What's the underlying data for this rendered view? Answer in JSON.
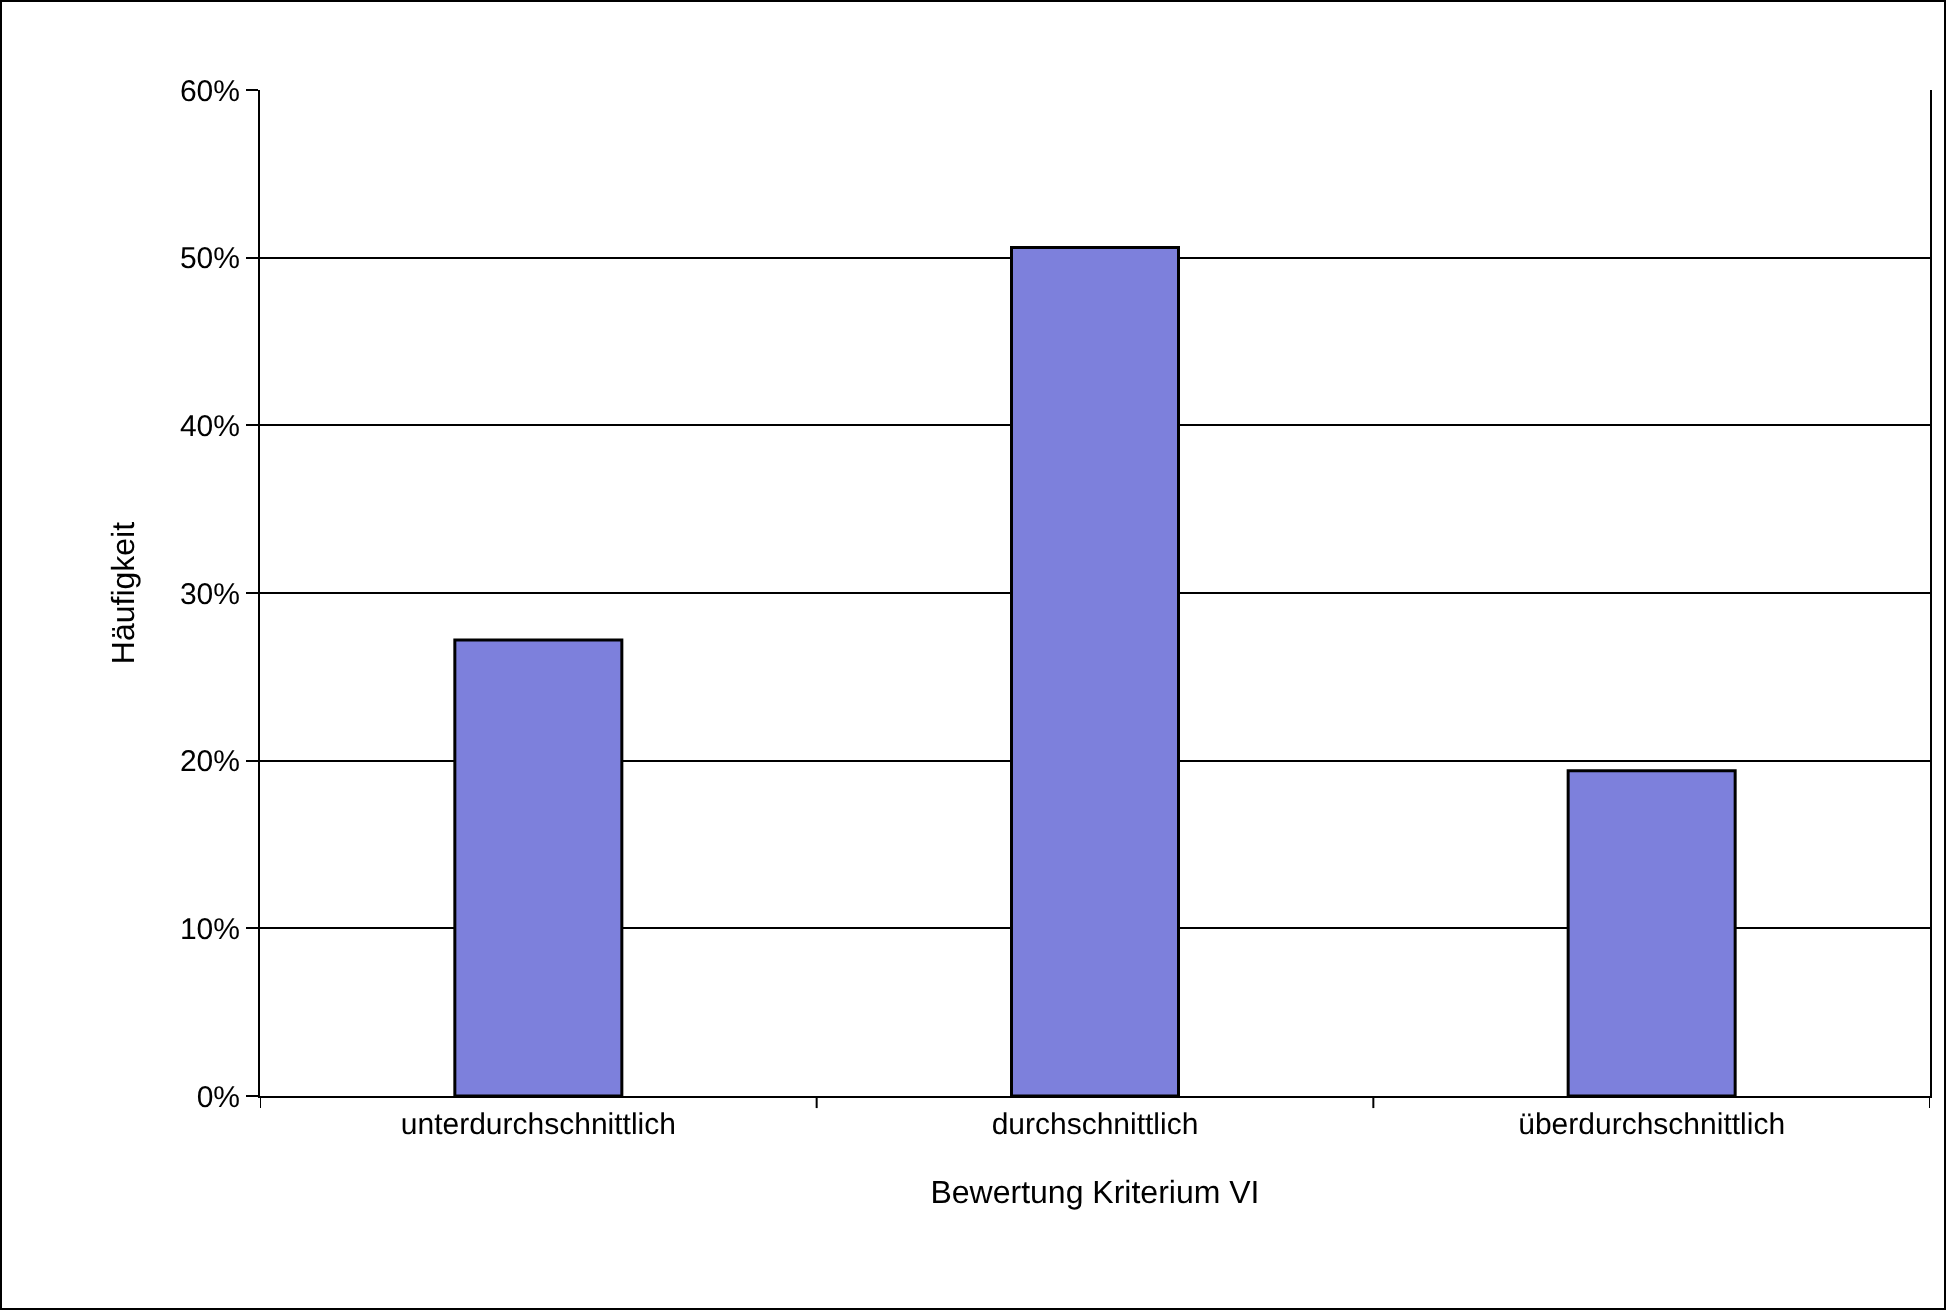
{
  "chart_data": {
    "type": "bar",
    "xlabel": "Bewertung Kriterium VI",
    "ylabel": "Häufigkeit",
    "categories": [
      "unterdurchschnittlich",
      "durchschnittlich",
      "überdurchschnittlich"
    ],
    "values": [
      27.2,
      50.6,
      19.4
    ],
    "color": "#7d80dc",
    "ylim": [
      0,
      60
    ],
    "yticks": [
      {
        "value": 0,
        "label": "0%"
      },
      {
        "value": 10,
        "label": "10%"
      },
      {
        "value": 20,
        "label": "20%"
      },
      {
        "value": 30,
        "label": "30%"
      },
      {
        "value": 40,
        "label": "40%"
      },
      {
        "value": 50,
        "label": "50%"
      },
      {
        "value": 60,
        "label": "60%"
      }
    ],
    "grid": "y",
    "legend": false
  }
}
